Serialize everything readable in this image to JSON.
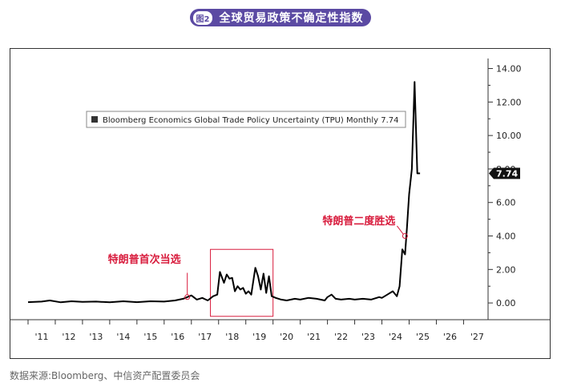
{
  "header": {
    "figure_tag": "图2",
    "title": "全球贸易政策不确定性指数"
  },
  "source": "数据来源:Bloomberg、中信资产配置委员会",
  "colors": {
    "header_bg": "#5b4aa3",
    "annotation": "#d81b3c",
    "line": "#000000"
  },
  "chart_data": {
    "type": "line",
    "title": "",
    "xlabel": "",
    "ylabel": "",
    "x_ticks": [
      "'11",
      "'12",
      "'13",
      "'14",
      "'15",
      "'16",
      "'17",
      "'18",
      "'19",
      "'20",
      "'21",
      "'22",
      "'23",
      "'24",
      "'25",
      "'26",
      "'27"
    ],
    "xlim": [
      2011.0,
      2027.9
    ],
    "y_ticks": [
      "14.00",
      "12.00",
      "10.00",
      "8.00",
      "6.00",
      "4.00",
      "2.00",
      "0.00"
    ],
    "ylim": [
      -1.0,
      14.6
    ],
    "y_axis_position": "right",
    "grid": false,
    "legend": {
      "label": "Bloomberg Economics Global Trade Policy Uncertainty (TPU) Monthly 7.74",
      "position": "top-left"
    },
    "last_value_label": "7.74",
    "annotations": [
      {
        "text": "特朗普首次当选",
        "x": 2016.85,
        "y": 0.35
      },
      {
        "text": "特朗普二度胜选",
        "x": 2024.85,
        "y": 4.0
      }
    ],
    "highlight_box": {
      "x": [
        2017.7,
        2020.0
      ],
      "y": [
        -0.8,
        3.2
      ]
    },
    "series": [
      {
        "x": [
          2011.0,
          2011.5,
          2011.8,
          2012.2,
          2012.6,
          2013.0,
          2013.5,
          2014.0,
          2014.5,
          2015.0,
          2015.5,
          2016.0,
          2016.4,
          2016.7,
          2016.85,
          2017.0,
          2017.2,
          2017.4,
          2017.6,
          2017.8,
          2017.95,
          2018.05,
          2018.2,
          2018.3,
          2018.4,
          2018.5,
          2018.6,
          2018.7,
          2018.8,
          2018.9,
          2019.0,
          2019.1,
          2019.2,
          2019.35,
          2019.45,
          2019.55,
          2019.65,
          2019.75,
          2019.85,
          2019.95,
          2020.1,
          2020.3,
          2020.5,
          2020.8,
          2021.0,
          2021.3,
          2021.6,
          2021.9,
          2022.0,
          2022.15,
          2022.3,
          2022.5,
          2022.8,
          2023.0,
          2023.3,
          2023.6,
          2023.9,
          2024.0,
          2024.2,
          2024.4,
          2024.55,
          2024.65,
          2024.75,
          2024.85,
          2024.92,
          2025.0,
          2025.1,
          2025.2,
          2025.3,
          2025.4
        ],
        "values": [
          0.05,
          0.08,
          0.15,
          0.04,
          0.1,
          0.06,
          0.08,
          0.04,
          0.1,
          0.05,
          0.1,
          0.08,
          0.15,
          0.25,
          0.35,
          0.45,
          0.2,
          0.3,
          0.15,
          0.4,
          0.5,
          1.85,
          1.2,
          1.7,
          1.45,
          1.5,
          0.7,
          1.0,
          0.8,
          0.9,
          0.55,
          0.7,
          0.5,
          2.1,
          1.6,
          0.8,
          1.75,
          0.6,
          1.6,
          0.4,
          0.3,
          0.2,
          0.15,
          0.25,
          0.2,
          0.3,
          0.25,
          0.15,
          0.35,
          0.5,
          0.25,
          0.2,
          0.25,
          0.2,
          0.25,
          0.2,
          0.35,
          0.3,
          0.5,
          0.7,
          0.4,
          1.0,
          3.2,
          2.9,
          4.5,
          6.5,
          8.0,
          13.2,
          7.74,
          7.74
        ]
      }
    ]
  }
}
